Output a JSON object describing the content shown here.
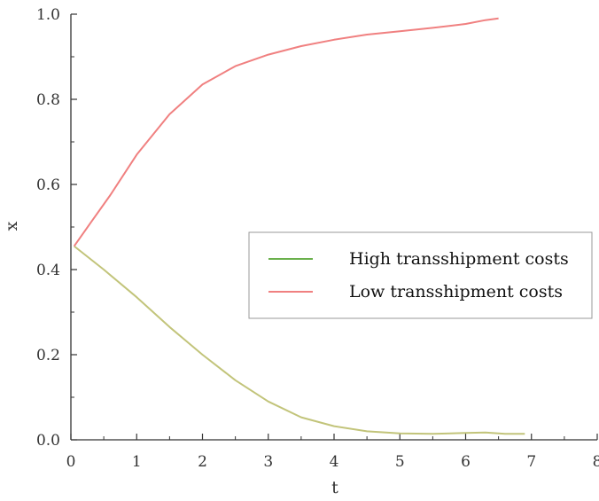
{
  "chart_data": {
    "type": "line",
    "title": "",
    "xlabel": "t",
    "ylabel": "x",
    "xlim": [
      0,
      8
    ],
    "ylim": [
      0,
      1.0
    ],
    "xticks": [
      "0",
      "1",
      "2",
      "3",
      "4",
      "5",
      "6",
      "7",
      "8"
    ],
    "yticks": [
      "0.0",
      "0.2",
      "0.4",
      "0.6",
      "0.8",
      "1.0"
    ],
    "grid": false,
    "legend_position": "center-right",
    "series": [
      {
        "name": "High transshipment costs",
        "color": "#c2c47a",
        "legend_color": "#6ab04c",
        "x": [
          0.05,
          0.5,
          1.0,
          1.5,
          2.0,
          2.5,
          3.0,
          3.5,
          4.0,
          4.5,
          5.0,
          5.5,
          6.0,
          6.3,
          6.6,
          6.9
        ],
        "y": [
          0.455,
          0.4,
          0.335,
          0.265,
          0.2,
          0.14,
          0.09,
          0.053,
          0.032,
          0.02,
          0.015,
          0.014,
          0.016,
          0.017,
          0.014,
          0.014
        ]
      },
      {
        "name": "Low transshipment costs",
        "color": "#f08080",
        "legend_color": "#f08080",
        "x": [
          0.05,
          0.3,
          0.6,
          1.0,
          1.5,
          2.0,
          2.5,
          3.0,
          3.5,
          4.0,
          4.5,
          5.0,
          5.5,
          6.0,
          6.3,
          6.5
        ],
        "y": [
          0.455,
          0.51,
          0.575,
          0.67,
          0.765,
          0.835,
          0.878,
          0.905,
          0.925,
          0.94,
          0.952,
          0.96,
          0.968,
          0.977,
          0.986,
          0.99
        ]
      }
    ]
  }
}
